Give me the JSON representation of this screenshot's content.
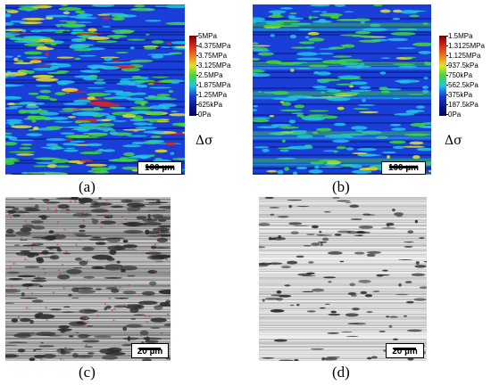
{
  "figure": {
    "panels": [
      {
        "id": "a",
        "label": "(a)",
        "kind": "stress-map",
        "scale_label": "100 µm",
        "legend": [
          "5MPa",
          "4.375MPa",
          "3.75MPa",
          "3.125MPa",
          "2.5MPa",
          "1.875MPa",
          "1.25MPa",
          "625kPa",
          "0Pa"
        ],
        "legend_symbol": "Δσ"
      },
      {
        "id": "b",
        "label": "(b)",
        "kind": "stress-map",
        "scale_label": "100 µm",
        "legend": [
          "1.5MPa",
          "1.3125MPa",
          "1.125MPa",
          "937.5kPa",
          "750kPa",
          "562.5kPa",
          "375kPa",
          "187.5kPa",
          "0Pa"
        ],
        "legend_symbol": "Δσ"
      },
      {
        "id": "c",
        "label": "(c)",
        "kind": "micrograph",
        "scale_label": "20 µm"
      },
      {
        "id": "d",
        "label": "(d)",
        "kind": "micrograph",
        "scale_label": "20 µm"
      }
    ],
    "colors": {
      "map_base": "#1a3fd8",
      "map_dark": "#0a1a8a",
      "map_cyan": "#21c4e8",
      "map_green": "#3fd83a",
      "map_yellow": "#e8e02a",
      "map_red": "#d8261e",
      "sem_light": "#d8d8d8",
      "sem_dark": "#2a2a2a"
    }
  }
}
